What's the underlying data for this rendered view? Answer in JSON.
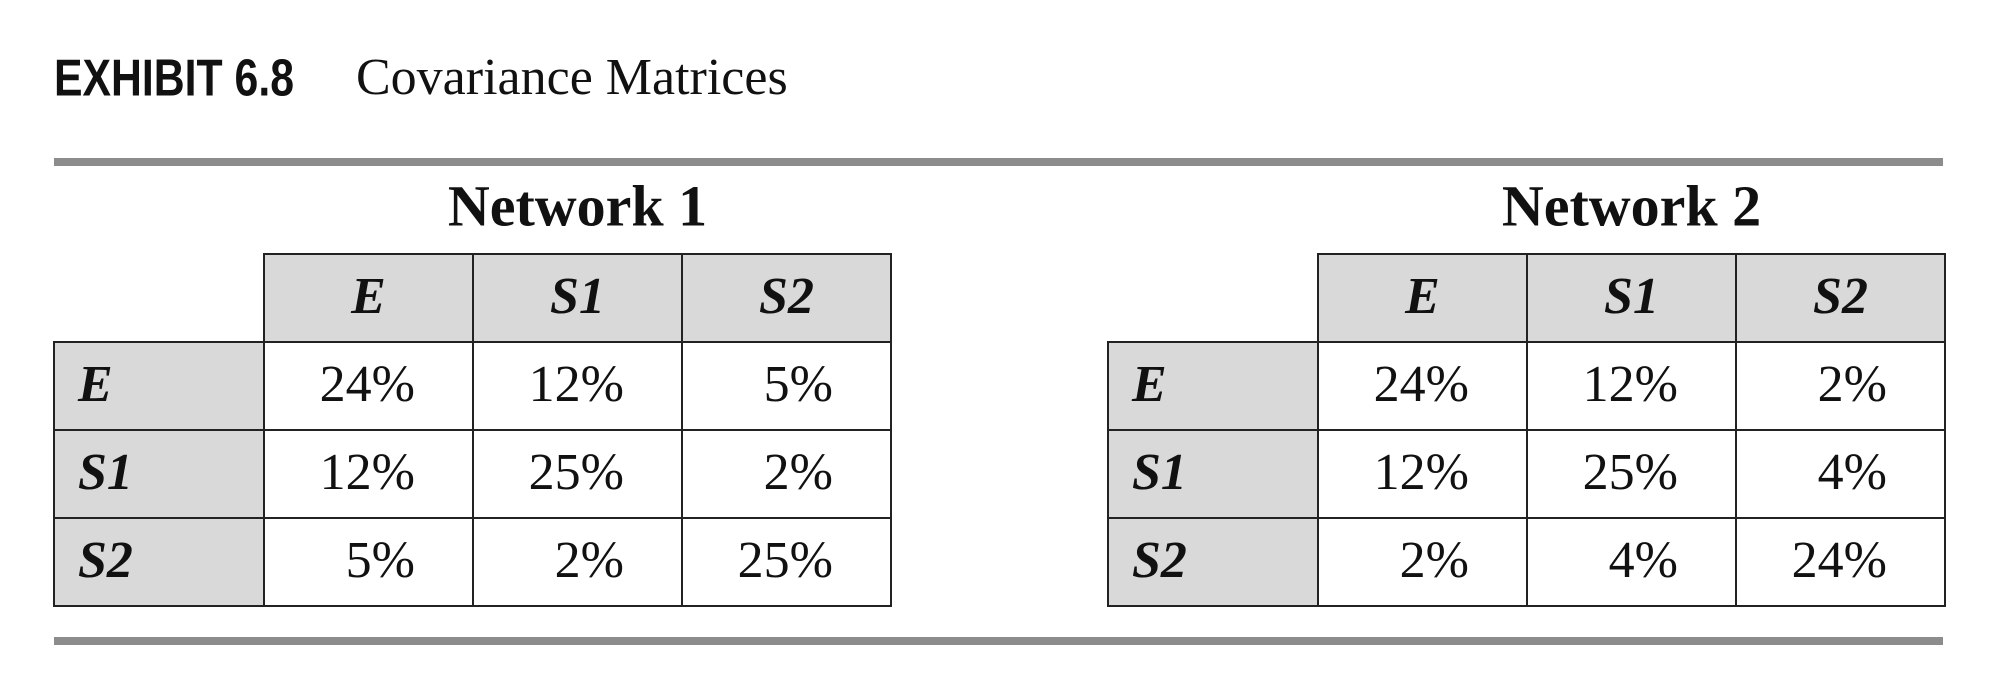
{
  "header": {
    "label": "EXHIBIT 6.8",
    "title": "Covariance Matrices"
  },
  "tables": [
    {
      "title": "Network 1",
      "columns": [
        "E",
        "S1",
        "S2"
      ],
      "rows": [
        {
          "label": "E",
          "cells": [
            "24%",
            "12%",
            "5%"
          ]
        },
        {
          "label": "S1",
          "cells": [
            "12%",
            "25%",
            "2%"
          ]
        },
        {
          "label": "S2",
          "cells": [
            "5%",
            "2%",
            "25%"
          ]
        }
      ]
    },
    {
      "title": "Network 2",
      "columns": [
        "E",
        "S1",
        "S2"
      ],
      "rows": [
        {
          "label": "E",
          "cells": [
            "24%",
            "12%",
            "2%"
          ]
        },
        {
          "label": "S1",
          "cells": [
            "12%",
            "25%",
            "4%"
          ]
        },
        {
          "label": "S2",
          "cells": [
            "2%",
            "4%",
            "24%"
          ]
        }
      ]
    }
  ]
}
